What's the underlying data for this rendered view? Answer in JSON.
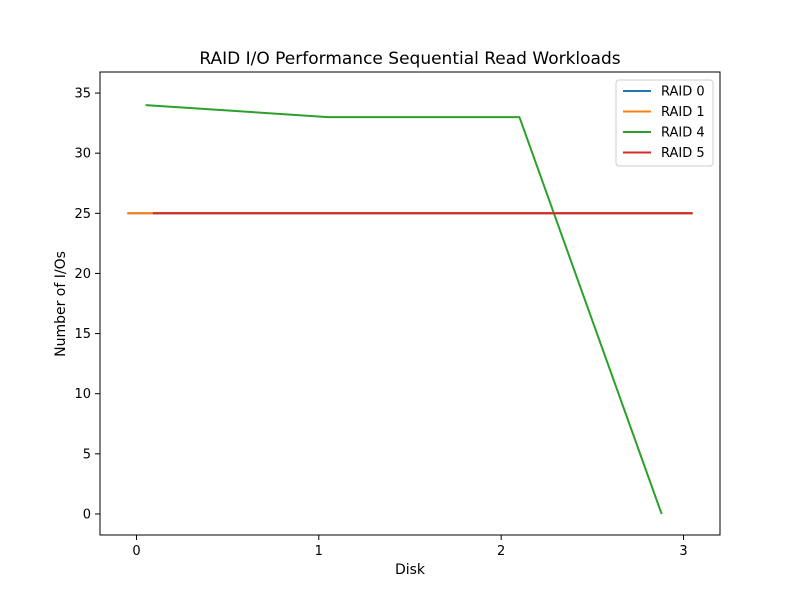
{
  "chart_data": {
    "type": "line",
    "title": "RAID I/O Performance Sequential Read Workloads",
    "xlabel": "Disk",
    "ylabel": "Number of I/Os",
    "xlim": [
      -0.2,
      3.2
    ],
    "ylim": [
      -1.75,
      36.75
    ],
    "xticks": [
      0,
      1,
      2,
      3
    ],
    "yticks": [
      0,
      5,
      10,
      15,
      20,
      25,
      30,
      35
    ],
    "grid": false,
    "legend_position": "top-right",
    "series": [
      {
        "name": "RAID 0",
        "color": "#1f77b4",
        "x": [
          -0.05,
          3.05
        ],
        "y": [
          25,
          25
        ]
      },
      {
        "name": "RAID 1",
        "color": "#ff7f0e",
        "x": [
          -0.05,
          3.05
        ],
        "y": [
          25,
          25
        ]
      },
      {
        "name": "RAID 4",
        "color": "#2ca02c",
        "x": [
          0.05,
          1.05,
          2.1,
          2.88
        ],
        "y": [
          34,
          33,
          33,
          0
        ]
      },
      {
        "name": "RAID 5",
        "color": "#d62728",
        "x": [
          0.09,
          3.05
        ],
        "y": [
          25,
          25
        ]
      }
    ]
  }
}
